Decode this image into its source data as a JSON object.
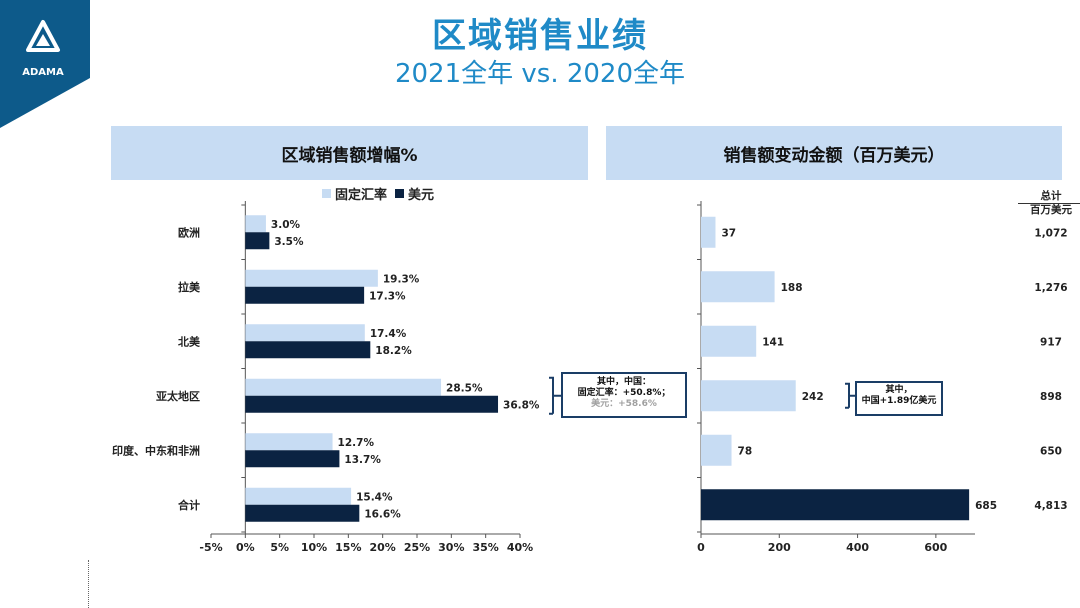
{
  "brand": {
    "name": "ADAMA",
    "color": "#0d5a8a"
  },
  "title": "区域销售业绩",
  "subtitle": "2021全年 vs. 2020全年",
  "colors": {
    "title": "#1f8ac7",
    "header_bg": "#c7dcf3",
    "light_bar": "#c7dcf3",
    "dark_bar": "#0b2342",
    "callout_border": "#1a3d66"
  },
  "panels": {
    "left_header": "区域销售额增幅%",
    "right_header": "销售额变动金额（百万美元）"
  },
  "legend": {
    "fixed_fx": "固定汇率",
    "usd": "美元"
  },
  "total_header": {
    "line1": "总计",
    "line2": "百万美元"
  },
  "callouts": {
    "left": {
      "line1": "其中，中国：",
      "line2": "固定汇率：+50.8%；",
      "line3": "美元：+58.6%"
    },
    "right": {
      "line1": "其中，",
      "line2": "中国+1.89亿美元"
    }
  },
  "chart_data": [
    {
      "type": "bar",
      "orientation": "horizontal",
      "title": "区域销售额增幅%",
      "categories": [
        "欧洲",
        "拉美",
        "北美",
        "亚太地区",
        "印度、中东和非洲",
        "合计"
      ],
      "series": [
        {
          "name": "固定汇率",
          "values": [
            3.0,
            19.3,
            17.4,
            28.5,
            12.7,
            15.4
          ]
        },
        {
          "name": "美元",
          "values": [
            3.5,
            17.3,
            18.2,
            36.8,
            13.7,
            16.6
          ]
        }
      ],
      "value_labels": {
        "固定汇率": [
          "3.0%",
          "19.3%",
          "17.4%",
          "28.5%",
          "12.7%",
          "15.4%"
        ],
        "美元": [
          "3.5%",
          "17.3%",
          "18.2%",
          "36.8%",
          "13.7%",
          "16.6%"
        ]
      },
      "xlim": [
        -5,
        40
      ],
      "xticks": [
        -5,
        0,
        5,
        10,
        15,
        20,
        25,
        30,
        35,
        40
      ],
      "xtick_labels": [
        "-5%",
        "0%",
        "5%",
        "10%",
        "15%",
        "20%",
        "25%",
        "30%",
        "35%",
        "40%"
      ],
      "legend": "top"
    },
    {
      "type": "bar",
      "orientation": "horizontal",
      "title": "销售额变动金额（百万美元）",
      "categories": [
        "欧洲",
        "拉美",
        "北美",
        "亚太地区",
        "印度、中东和非洲",
        "合计"
      ],
      "values": [
        37,
        188,
        141,
        242,
        78,
        685
      ],
      "value_labels": [
        "37",
        "188",
        "141",
        "242",
        "78",
        "685"
      ],
      "totals": [
        "1,072",
        "1,276",
        "917",
        "898",
        "650",
        "4,813"
      ],
      "xlim": [
        0,
        700
      ],
      "xticks": [
        0,
        200,
        400,
        600
      ],
      "xtick_labels": [
        "0",
        "200",
        "400",
        "600"
      ]
    }
  ]
}
